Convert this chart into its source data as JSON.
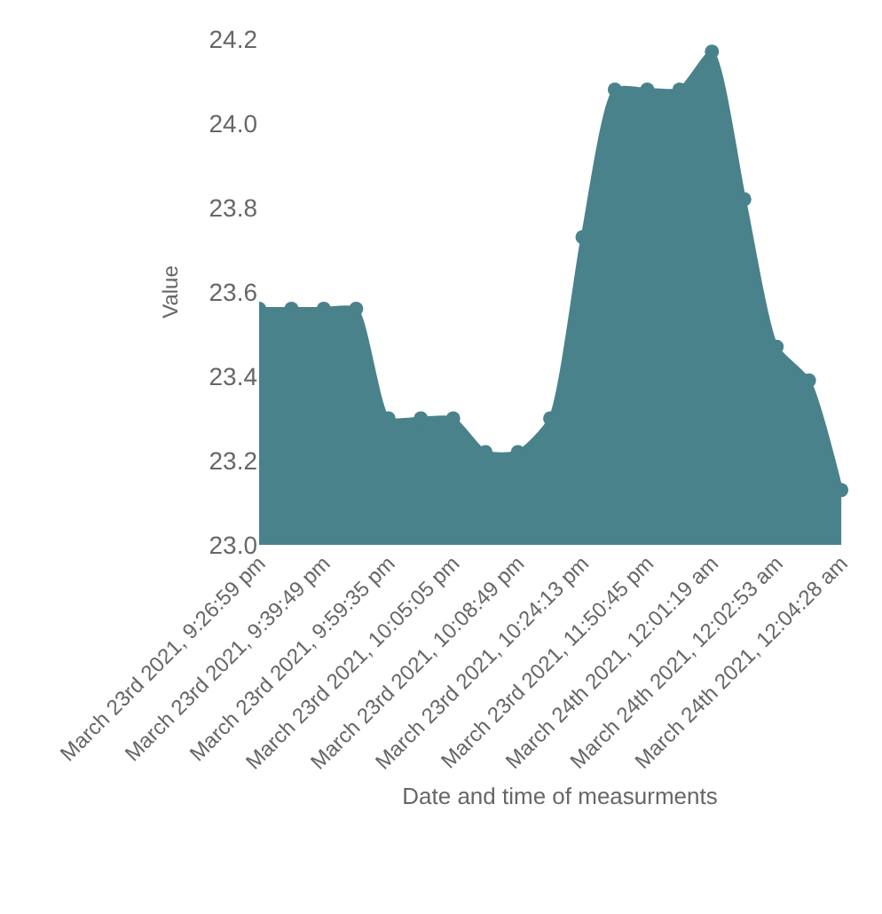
{
  "chart_data": {
    "type": "area",
    "xlabel": "Date and time of measurments",
    "ylabel": "Value",
    "categories": [
      "March 23rd 2021, 9:26:59 pm",
      null,
      "March 23rd 2021, 9:39:49 pm",
      null,
      "March 23rd 2021, 9:59:35 pm",
      null,
      "March 23rd 2021, 10:05:05 pm",
      null,
      "March 23rd 2021, 10:08:49 pm",
      null,
      "March 23rd 2021, 10:24:13 pm",
      null,
      "March 23rd 2021, 11:50:45 pm",
      null,
      "March 24th 2021, 12:01:19 am",
      null,
      "March 24th 2021, 12:02:53 am",
      null,
      "March 24th 2021, 12:04:28 am"
    ],
    "series": [
      {
        "color": "#4a828c",
        "values": [
          23.56,
          23.56,
          23.56,
          23.56,
          23.3,
          23.3,
          23.3,
          23.22,
          23.22,
          23.3,
          23.73,
          24.08,
          24.08,
          24.08,
          24.17,
          23.82,
          23.47,
          23.39,
          23.13
        ]
      }
    ],
    "ylim": [
      23.0,
      24.2
    ],
    "yticks": [
      {
        "value": 23.0,
        "label": "23.0"
      },
      {
        "value": 23.2,
        "label": "23.2"
      },
      {
        "value": 23.4,
        "label": "23.4"
      },
      {
        "value": 23.6,
        "label": "23.6"
      },
      {
        "value": 23.8,
        "label": "23.8"
      },
      {
        "value": 24.0,
        "label": "24.0"
      },
      {
        "value": 24.2,
        "label": "24.2"
      }
    ],
    "marker": "circle"
  }
}
